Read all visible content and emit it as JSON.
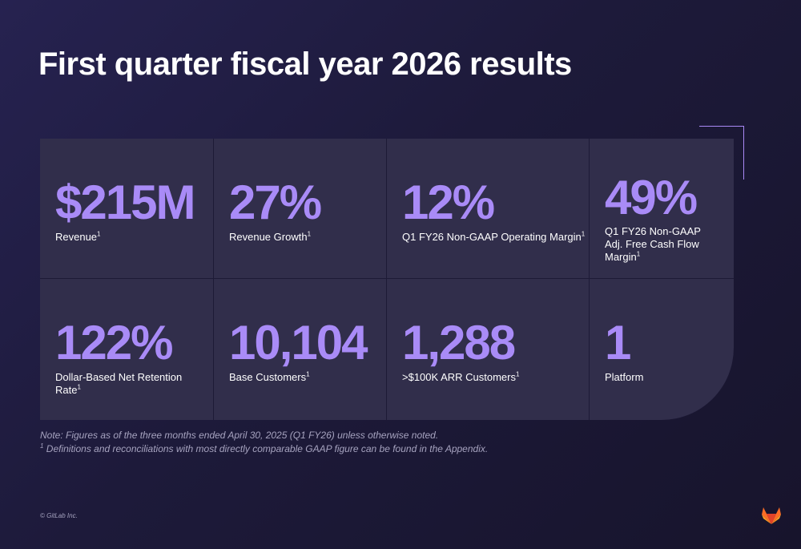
{
  "title": "First quarter fiscal year 2026 results",
  "stats": [
    {
      "value": "$215M",
      "label": "Revenue",
      "sup": "1"
    },
    {
      "value": "27%",
      "label": "Revenue Growth",
      "sup": "1"
    },
    {
      "value": "12%",
      "label": "Q1 FY26 Non-GAAP Operating Margin",
      "sup": "1"
    },
    {
      "value": "49%",
      "label": "Q1 FY26 Non-GAAP Adj. Free Cash Flow Margin",
      "sup": "1"
    },
    {
      "value": "122%",
      "label": "Dollar-Based Net Retention Rate",
      "sup": "1"
    },
    {
      "value": "10,104",
      "label": "Base Customers",
      "sup": "1"
    },
    {
      "value": "1,288",
      "label": ">$100K ARR Customers",
      "sup": "1"
    },
    {
      "value": "1",
      "label": "Platform",
      "sup": ""
    }
  ],
  "note": {
    "line1": "Note:  Figures as of the three months ended April 30, 2025 (Q1 FY26) unless otherwise noted.",
    "line2_sup": "1",
    "line2": " Definitions and reconciliations with most directly comparable GAAP figure can be found in the Appendix."
  },
  "copyright": "© GitLab Inc.",
  "logo_icon": "gitlab-fox-logo-icon",
  "colors": {
    "accent": "#a98bf7",
    "background": "#1d1a3a",
    "card": "#2d2a48",
    "logo_orange": "#fc6d26",
    "logo_red": "#e24329",
    "logo_amber": "#fca326"
  }
}
